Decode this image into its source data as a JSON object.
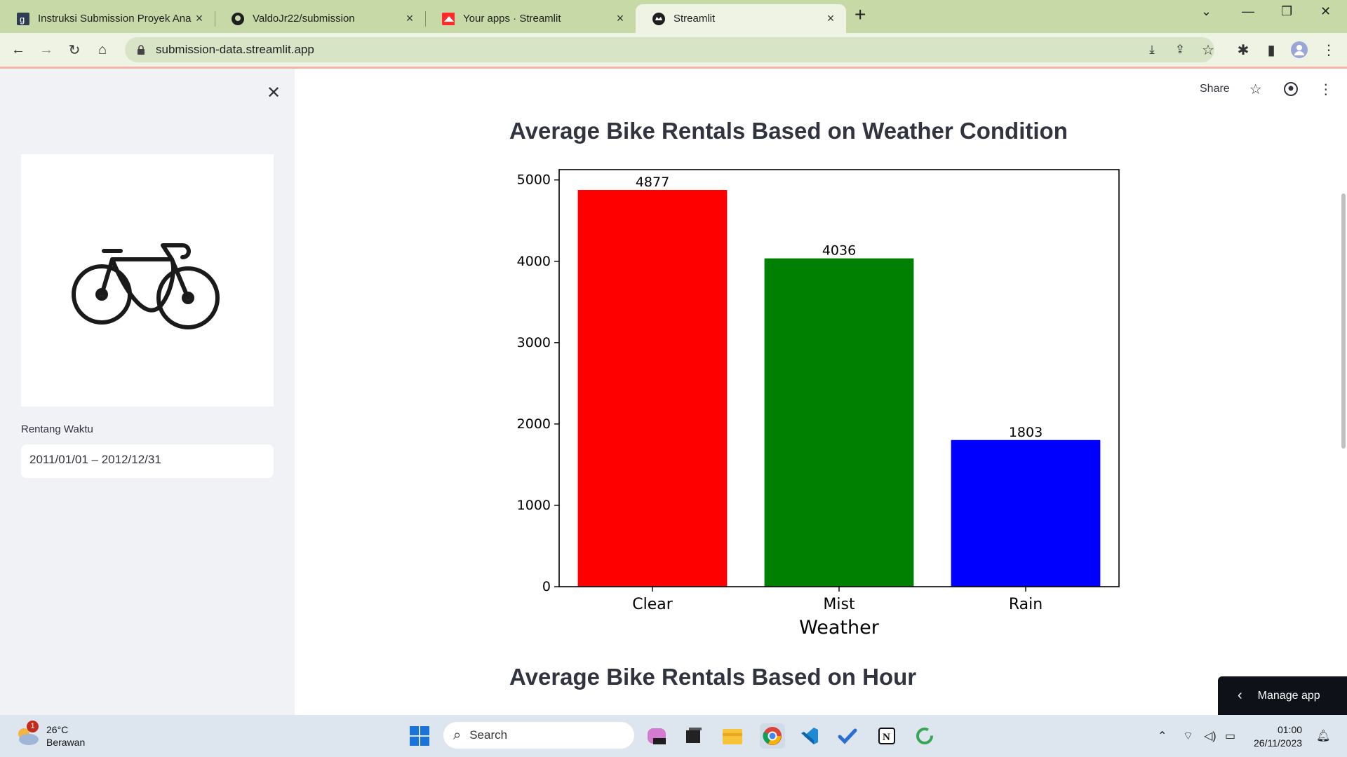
{
  "browser": {
    "tabs": [
      {
        "title": "Instruksi Submission Proyek Ana",
        "active": false
      },
      {
        "title": "ValdoJr22/submission",
        "active": false
      },
      {
        "title": "Your apps · Streamlit",
        "active": false
      },
      {
        "title": "Streamlit",
        "active": true
      }
    ],
    "url": "submission-data.streamlit.app"
  },
  "sidebar": {
    "date_label": "Rentang Waktu",
    "date_value": "2011/01/01 – 2012/12/31"
  },
  "header": {
    "share_label": "Share"
  },
  "main": {
    "section1_title": "Average Bike Rentals Based on Weather Condition",
    "section2_title": "Average Bike Rentals Based on Hour"
  },
  "chart_data": {
    "type": "bar",
    "categories": [
      "Clear",
      "Mist",
      "Rain"
    ],
    "values": [
      4877,
      4036,
      1803
    ],
    "data_labels": [
      "4877",
      "4036",
      "1803"
    ],
    "colors": [
      "#ff0000",
      "#008000",
      "#0000ff"
    ],
    "xlabel": "Weather",
    "ylabel": "",
    "ylim": [
      0,
      5127
    ],
    "yticks": [
      0,
      1000,
      2000,
      3000,
      4000,
      5000
    ],
    "grid": false
  },
  "manage_app": {
    "label": "Manage app"
  },
  "taskbar": {
    "weather_temp": "26°C",
    "weather_desc": "Berawan",
    "weather_badge": "1",
    "search_label": "Search",
    "time": "01:00",
    "date": "26/11/2023"
  }
}
